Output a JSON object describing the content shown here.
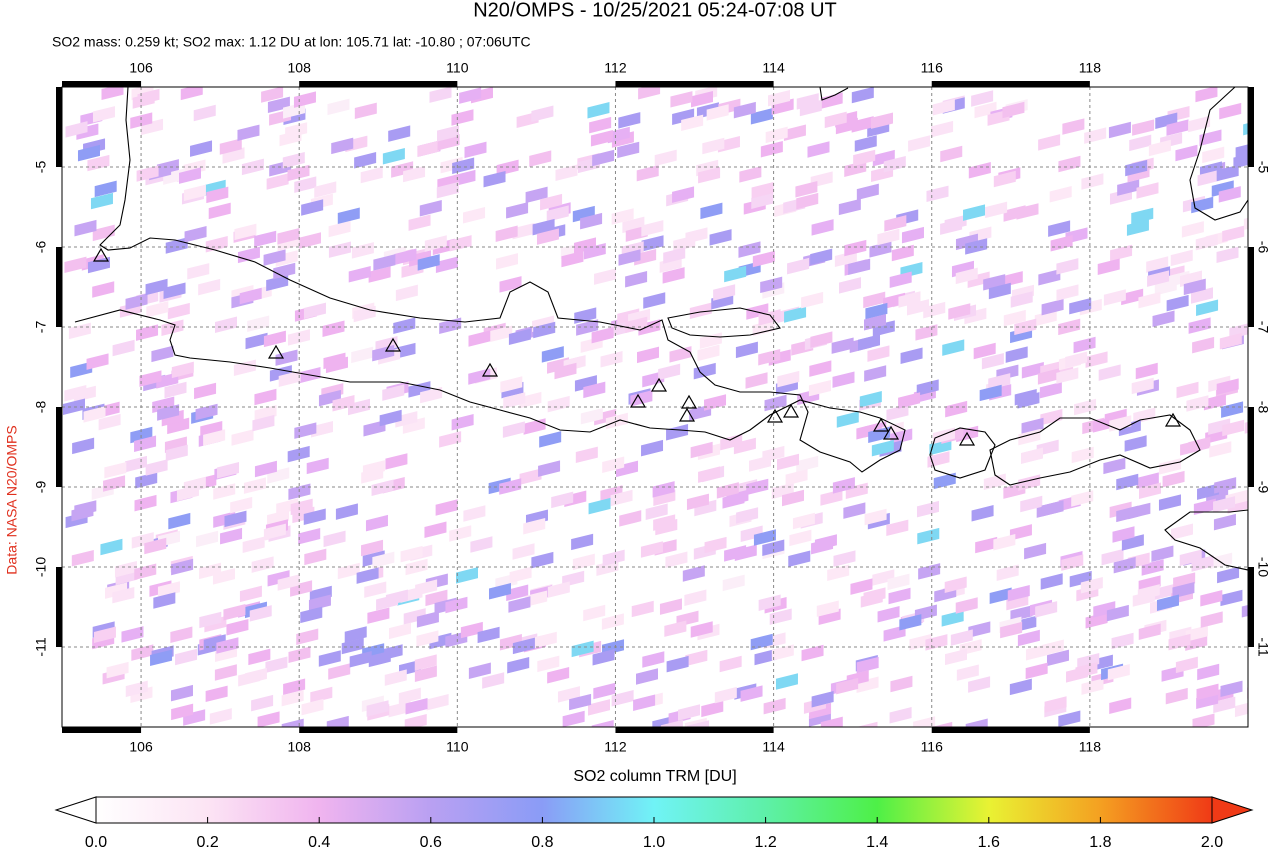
{
  "chart_data": {
    "type": "map",
    "title": "N20/OMPS - 10/25/2021 05:24-07:08 UT",
    "subtitle": "SO2 mass: 0.259 kt; SO2 max: 1.12 DU at lon: 105.71 lat: -10.80 ; 07:06UTC",
    "credit": "Data: NASA N20/OMPS",
    "xlim": [
      105,
      120
    ],
    "xticks": [
      106,
      108,
      110,
      112,
      114,
      116,
      118
    ],
    "ylim": [
      -12,
      -4
    ],
    "yticks": [
      -5,
      -6,
      -7,
      -8,
      -9,
      -10,
      -11
    ],
    "grid": true,
    "colorbar": {
      "label": "SO2 column TRM [DU]",
      "lim": [
        0,
        2
      ],
      "ticks": [
        {
          "value": 0,
          "label": "0.0"
        },
        {
          "value": 0.2,
          "label": "0.2"
        },
        {
          "value": 0.4,
          "label": "0.4"
        },
        {
          "value": 0.6,
          "label": "0.6"
        },
        {
          "value": 0.8,
          "label": "0.8"
        },
        {
          "value": 1,
          "label": "1.0"
        },
        {
          "value": 1.2,
          "label": "1.2"
        },
        {
          "value": 1.4,
          "label": "1.4"
        },
        {
          "value": 1.6,
          "label": "1.6"
        },
        {
          "value": 1.8,
          "label": "1.8"
        },
        {
          "value": 2,
          "label": "2.0"
        }
      ]
    }
  }
}
